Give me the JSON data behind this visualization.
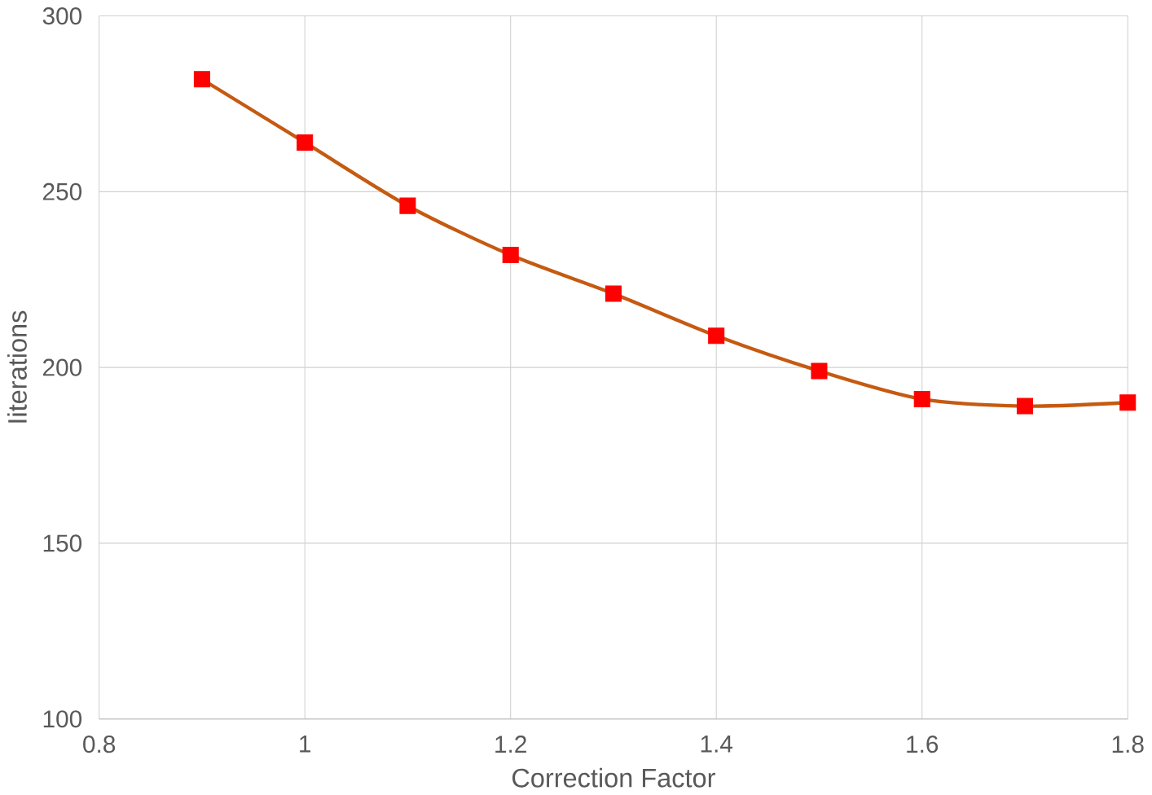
{
  "chart_data": {
    "type": "line",
    "xlabel": "Correction Factor",
    "ylabel": "Iiterations",
    "x": [
      0.9,
      1.0,
      1.1,
      1.2,
      1.3,
      1.4,
      1.5,
      1.6,
      1.7,
      1.8
    ],
    "series": [
      {
        "color": "#c55a11",
        "colors": [
          "#ff0000",
          "#ff0000",
          "#ff0000",
          "#ff0000",
          "#ff0000",
          "#ff0000",
          "#ff0000",
          "#ff0000",
          "#ff0000",
          "#ff0000"
        ],
        "values": [
          282,
          264,
          246,
          232,
          221,
          209,
          199,
          191,
          189,
          190
        ]
      }
    ],
    "xlim": [
      0.8,
      1.8
    ],
    "ylim": [
      100,
      300
    ],
    "xticks": [
      0.8,
      1,
      1.2,
      1.4,
      1.6,
      1.8
    ],
    "yticks": [
      100,
      150,
      200,
      250,
      300
    ],
    "grid": true,
    "marker": "square",
    "line_style": "solid"
  }
}
